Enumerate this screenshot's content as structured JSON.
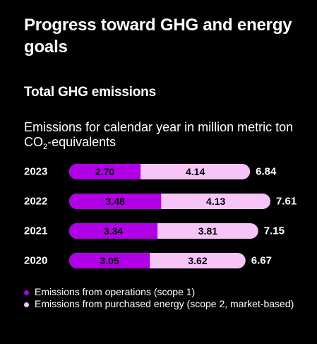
{
  "header": {
    "title": "Progress toward GHG and energy goals",
    "subtitle": "Total GHG emissions",
    "description_main": "Emissions for calendar year in million metric ton CO",
    "description_sub": "2",
    "description_tail": "-equivalents"
  },
  "colors": {
    "background": "#000000",
    "scope1": "#b100e8",
    "scope2": "#f7c4f8",
    "text": "#ffffff",
    "bar_text": "#000000"
  },
  "chart_data": {
    "type": "bar",
    "orientation": "horizontal",
    "stacked": true,
    "categories": [
      "2023",
      "2022",
      "2021",
      "2020"
    ],
    "series": [
      {
        "name": "Emissions from operations (scope 1)",
        "values": [
          2.7,
          3.48,
          3.34,
          3.05
        ],
        "labels": [
          "2.70",
          "3.48",
          "3.34",
          "3.05"
        ]
      },
      {
        "name": "Emissions from purchased energy (scope 2, market-based)",
        "values": [
          4.14,
          4.13,
          3.81,
          3.62
        ],
        "labels": [
          "4.14",
          "4.13",
          "3.81",
          "3.62"
        ]
      }
    ],
    "totals": [
      "6.84",
      "7.61",
      "7.15",
      "6.67"
    ],
    "xlim": [
      0,
      7.61
    ],
    "grid": false,
    "legend_position": "bottom"
  }
}
